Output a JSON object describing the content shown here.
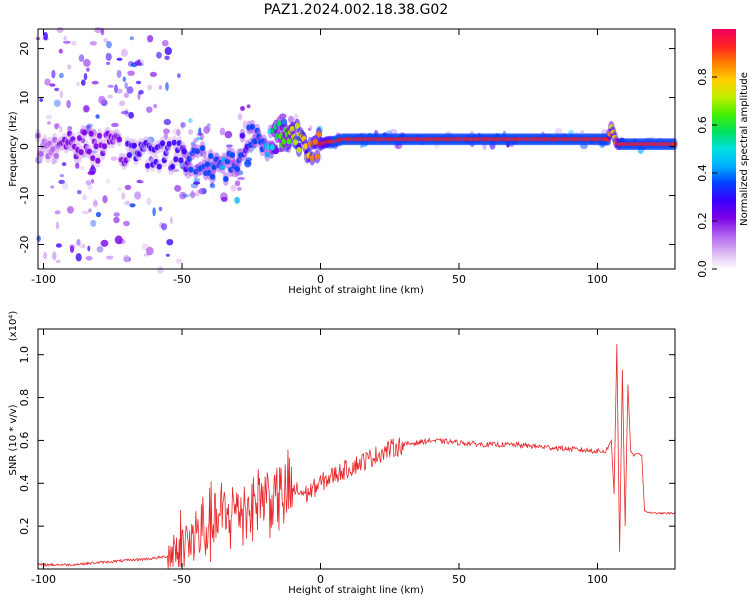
{
  "title": "PAZ1.2024.002.18.38.G02",
  "colors": {
    "snr_line": "#e8282a",
    "axes": "#000000",
    "colorbar_stops": [
      "#ffffff",
      "#d9b3f0",
      "#b060f0",
      "#7a00e6",
      "#3a00ff",
      "#0040ff",
      "#00b0ff",
      "#00e0e0",
      "#00e060",
      "#40f000",
      "#c0f000",
      "#ffd000",
      "#ff8000",
      "#ff2020",
      "#f00060"
    ]
  },
  "chart_data": [
    {
      "type": "heatmap",
      "xlabel": "Height of straight line (km)",
      "ylabel": "Frequency (Hz)",
      "xlim": [
        -102,
        128
      ],
      "ylim": [
        -25,
        24
      ],
      "xticks": [
        -100,
        -50,
        0,
        50,
        100
      ],
      "yticks": [
        -20,
        -10,
        0,
        10,
        20
      ],
      "colorbar": {
        "label": "Normalized spectral amplitude",
        "range": [
          0,
          1
        ],
        "ticks": [
          0.0,
          0.2,
          0.4,
          0.6,
          0.8
        ]
      },
      "ridge": {
        "x": [
          -100,
          -90,
          -80,
          -70,
          -60,
          -50,
          -45,
          -40,
          -35,
          -30,
          -27,
          -25,
          -22,
          -20,
          -17,
          -15,
          -12,
          -10,
          -7,
          -5,
          -3,
          0,
          3,
          5,
          8,
          10,
          15,
          20,
          30,
          50,
          80,
          95,
          100,
          104,
          105,
          107,
          110,
          115,
          120,
          125,
          128
        ],
        "freq": [
          0,
          1,
          0,
          -1,
          -1,
          -2,
          -3,
          -3,
          -4,
          -3,
          2,
          2,
          1,
          0,
          2.5,
          2.5,
          2.5,
          2.5,
          2,
          1,
          0.5,
          0.5,
          1,
          1,
          1.5,
          1.5,
          1.5,
          1.5,
          1.5,
          1.5,
          1.5,
          1.5,
          1.5,
          1.5,
          4,
          0.5,
          0.5,
          0.5,
          0.5,
          0.5,
          0.5
        ],
        "amp": [
          0.15,
          0.2,
          0.2,
          0.25,
          0.25,
          0.3,
          0.35,
          0.35,
          0.4,
          0.35,
          0.3,
          0.35,
          0.35,
          0.4,
          0.55,
          0.6,
          0.65,
          0.7,
          0.75,
          0.8,
          0.85,
          0.9,
          0.9,
          0.95,
          0.95,
          0.95,
          0.95,
          0.95,
          0.95,
          0.95,
          0.95,
          0.95,
          0.95,
          0.95,
          0.7,
          0.9,
          0.95,
          0.95,
          0.95,
          0.95,
          0.95
        ]
      }
    },
    {
      "type": "line",
      "xlabel": "Height of straight line (km)",
      "ylabel": "SNR (10 * v/v)",
      "multiplier": "(x10⁴)",
      "xlim": [
        -102,
        128
      ],
      "ylim": [
        0.0,
        1.12
      ],
      "xticks": [
        -100,
        -50,
        0,
        50,
        100
      ],
      "yticks": [
        0.2,
        0.4,
        0.6,
        0.8,
        1.0
      ],
      "series": [
        {
          "x": [
            -102,
            -90,
            -80,
            -70,
            -60,
            -55,
            -50,
            -45,
            -40,
            -35,
            -30,
            -25,
            -20,
            -15,
            -10,
            -5,
            0,
            5,
            10,
            15,
            20,
            25,
            30,
            35,
            40,
            50,
            60,
            70,
            80,
            90,
            100,
            103,
            105,
            106,
            107,
            108,
            109,
            110,
            111,
            112,
            113,
            115,
            116,
            117,
            120,
            125,
            128
          ],
          "y": [
            0.02,
            0.02,
            0.03,
            0.04,
            0.05,
            0.06,
            0.1,
            0.15,
            0.2,
            0.24,
            0.28,
            0.3,
            0.35,
            0.33,
            0.37,
            0.35,
            0.4,
            0.44,
            0.47,
            0.5,
            0.53,
            0.56,
            0.58,
            0.59,
            0.6,
            0.59,
            0.58,
            0.58,
            0.57,
            0.56,
            0.55,
            0.55,
            0.6,
            0.35,
            1.05,
            0.08,
            0.93,
            0.2,
            0.86,
            0.55,
            0.53,
            0.54,
            0.53,
            0.27,
            0.26,
            0.26,
            0.26
          ]
        }
      ]
    }
  ]
}
